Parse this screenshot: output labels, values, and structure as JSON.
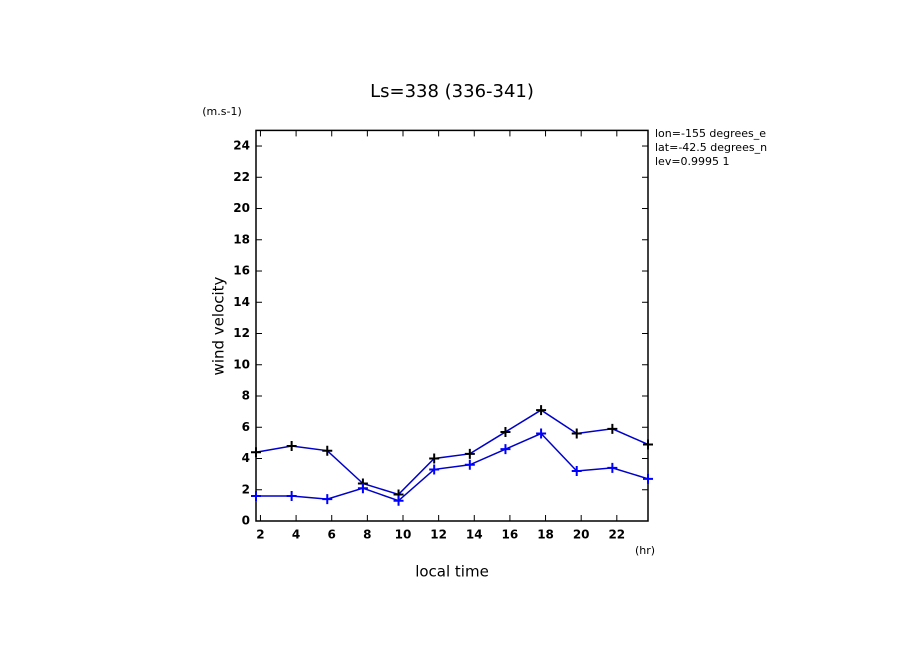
{
  "chart_data": {
    "type": "line",
    "title": "Ls=338 (336-341)",
    "y_unit": "(m.s-1)",
    "y_label": "wind velocity",
    "x_label": "local time",
    "x_unit": "(hr)",
    "annotations": [
      "lon=-155 degrees_e",
      "lat=-42.5 degrees_n",
      "lev=0.9995 1"
    ],
    "x": [
      1.75,
      3.75,
      5.75,
      7.75,
      9.75,
      11.75,
      13.75,
      15.75,
      17.75,
      19.75,
      21.75,
      23.75
    ],
    "series": [
      {
        "color": "#0000cc",
        "marker_color": "#000000",
        "values": [
          4.4,
          4.8,
          4.5,
          2.4,
          1.7,
          4.0,
          4.3,
          5.7,
          7.1,
          5.6,
          5.9,
          4.9
        ]
      },
      {
        "color": "#0000cc",
        "marker_color": "#0000ff",
        "values": [
          1.6,
          1.6,
          1.4,
          2.1,
          1.3,
          3.3,
          3.6,
          4.6,
          5.6,
          3.2,
          3.4,
          2.7
        ]
      }
    ],
    "xlim": [
      1.75,
      23.75
    ],
    "xticks": [
      2,
      4,
      6,
      8,
      10,
      12,
      14,
      16,
      18,
      20,
      22
    ],
    "ylim": [
      0,
      25
    ],
    "yticks": [
      0,
      2,
      4,
      6,
      8,
      10,
      12,
      14,
      16,
      18,
      20,
      22,
      24
    ]
  }
}
